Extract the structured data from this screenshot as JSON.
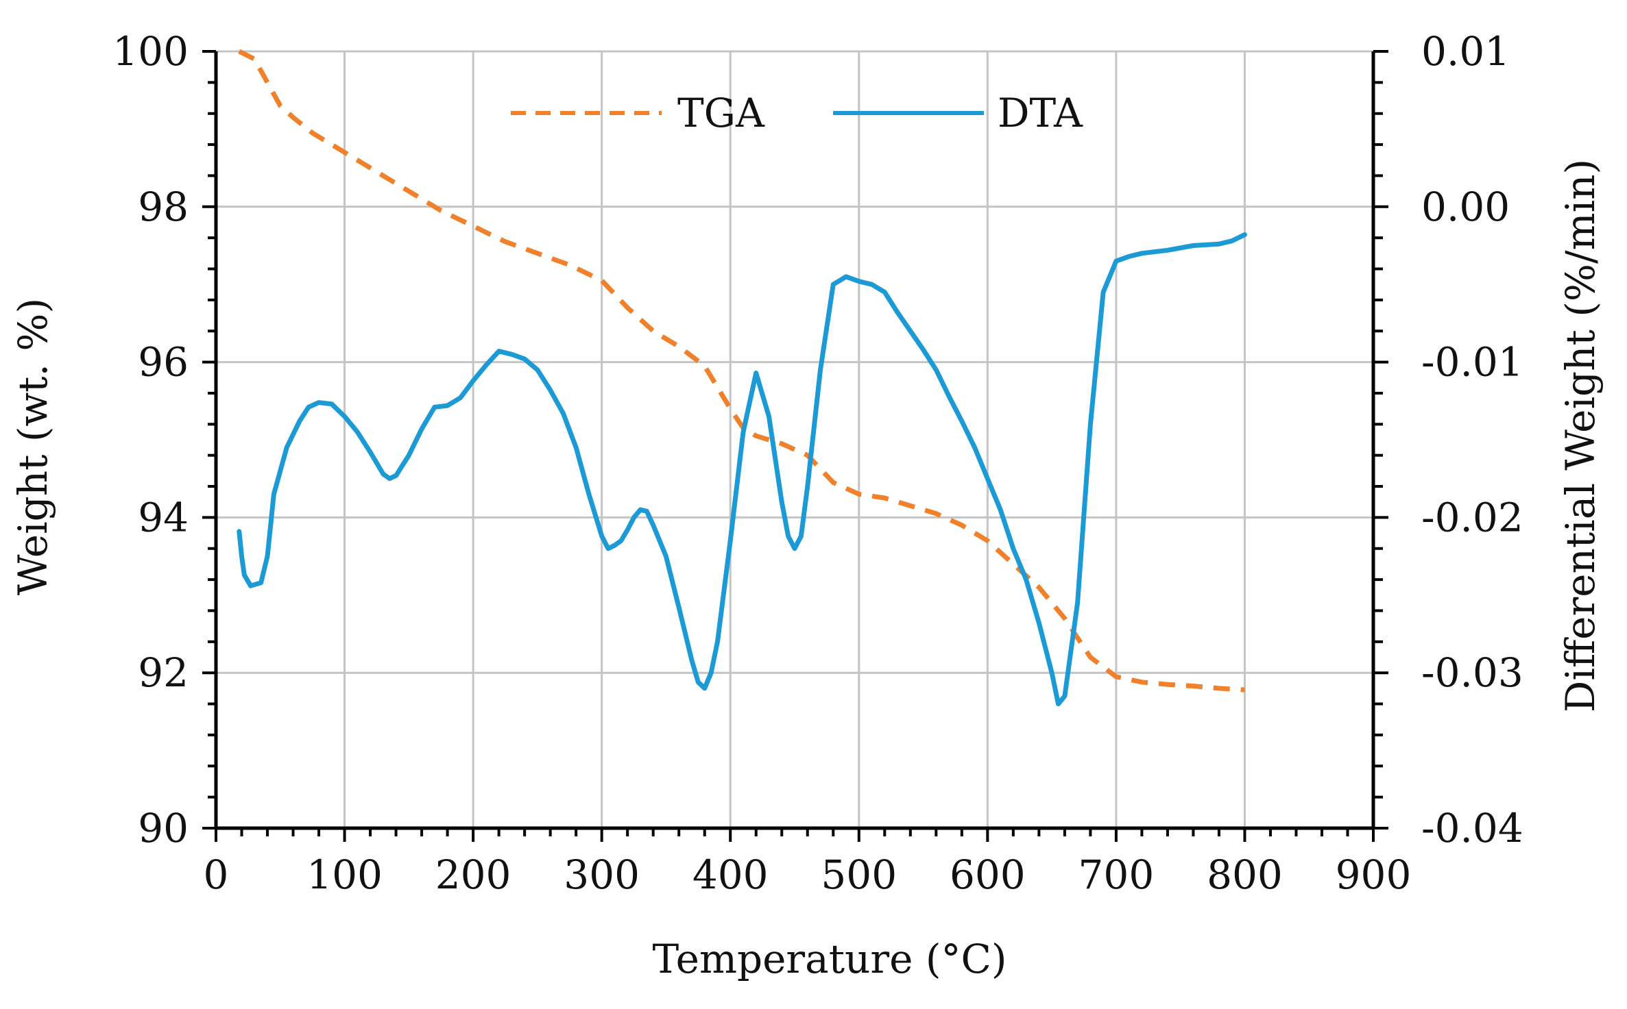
{
  "chart_data": {
    "type": "line",
    "title": "",
    "xlabel": "Temperature (°C)",
    "ylabel": "Weight (wt. %)",
    "y2label": "Differential Weight (%/min)",
    "xlim": [
      0,
      900
    ],
    "ylim": [
      90,
      100
    ],
    "y2lim": [
      -0.04,
      0.01
    ],
    "grid": true,
    "legend_position": "top-center",
    "x_ticks": [
      "0",
      "100",
      "200",
      "300",
      "400",
      "500",
      "600",
      "700",
      "800",
      "900"
    ],
    "y_ticks": [
      "90",
      "92",
      "94",
      "96",
      "98",
      "100"
    ],
    "y2_ticks": [
      "-0.04",
      "-0.03",
      "-0.02",
      "-0.01",
      "0.00",
      "0.01"
    ],
    "series": [
      {
        "name": "TGA",
        "axis": "left",
        "style": "dashed",
        "color": "#f0802a",
        "x": [
          18,
          30,
          40,
          50,
          60,
          75,
          100,
          125,
          150,
          175,
          200,
          225,
          250,
          275,
          300,
          320,
          340,
          360,
          380,
          400,
          410,
          420,
          440,
          460,
          480,
          500,
          520,
          540,
          560,
          580,
          600,
          620,
          640,
          660,
          680,
          700,
          720,
          740,
          760,
          780,
          800
        ],
        "y": [
          100.0,
          99.9,
          99.6,
          99.3,
          99.15,
          98.95,
          98.7,
          98.45,
          98.2,
          97.95,
          97.75,
          97.55,
          97.4,
          97.25,
          97.05,
          96.7,
          96.4,
          96.2,
          95.95,
          95.4,
          95.15,
          95.05,
          94.95,
          94.8,
          94.45,
          94.3,
          94.25,
          94.15,
          94.05,
          93.9,
          93.7,
          93.4,
          93.1,
          92.7,
          92.2,
          91.95,
          91.88,
          91.85,
          91.83,
          91.8,
          91.78
        ]
      },
      {
        "name": "DTA",
        "axis": "right",
        "style": "solid",
        "color": "#1b9ad6",
        "x": [
          18,
          20,
          22,
          27,
          35,
          40,
          45,
          55,
          65,
          72,
          80,
          90,
          100,
          110,
          120,
          130,
          135,
          140,
          150,
          160,
          170,
          180,
          190,
          200,
          210,
          220,
          230,
          240,
          250,
          260,
          270,
          280,
          290,
          300,
          305,
          310,
          315,
          320,
          325,
          330,
          335,
          340,
          350,
          360,
          370,
          375,
          380,
          385,
          390,
          400,
          410,
          420,
          430,
          440,
          445,
          450,
          455,
          460,
          470,
          480,
          490,
          500,
          510,
          520,
          530,
          540,
          550,
          560,
          570,
          580,
          590,
          600,
          610,
          620,
          630,
          640,
          650,
          655,
          660,
          670,
          680,
          690,
          700,
          710,
          720,
          740,
          760,
          780,
          790,
          800
        ],
        "y": [
          -0.0209,
          -0.0225,
          -0.0237,
          -0.0244,
          -0.0242,
          -0.0225,
          -0.0185,
          -0.0155,
          -0.0138,
          -0.0129,
          -0.0126,
          -0.0127,
          -0.0135,
          -0.0145,
          -0.0158,
          -0.0172,
          -0.0175,
          -0.0173,
          -0.016,
          -0.0143,
          -0.0129,
          -0.0128,
          -0.0123,
          -0.0112,
          -0.0102,
          -0.0093,
          -0.0095,
          -0.0098,
          -0.0105,
          -0.0118,
          -0.0133,
          -0.0155,
          -0.0185,
          -0.0212,
          -0.022,
          -0.0218,
          -0.0215,
          -0.0208,
          -0.02,
          -0.0195,
          -0.0196,
          -0.0205,
          -0.0225,
          -0.0258,
          -0.0292,
          -0.0306,
          -0.031,
          -0.03,
          -0.028,
          -0.0215,
          -0.0145,
          -0.0107,
          -0.0135,
          -0.019,
          -0.0212,
          -0.022,
          -0.0212,
          -0.018,
          -0.0105,
          -0.005,
          -0.0045,
          -0.0048,
          -0.005,
          -0.0055,
          -0.0068,
          -0.008,
          -0.0092,
          -0.0105,
          -0.0122,
          -0.0138,
          -0.0155,
          -0.0175,
          -0.0195,
          -0.022,
          -0.024,
          -0.0268,
          -0.03,
          -0.032,
          -0.0315,
          -0.0255,
          -0.014,
          -0.0055,
          -0.0035,
          -0.0032,
          -0.003,
          -0.0028,
          -0.0025,
          -0.0024,
          -0.0022,
          -0.0018
        ]
      }
    ]
  }
}
